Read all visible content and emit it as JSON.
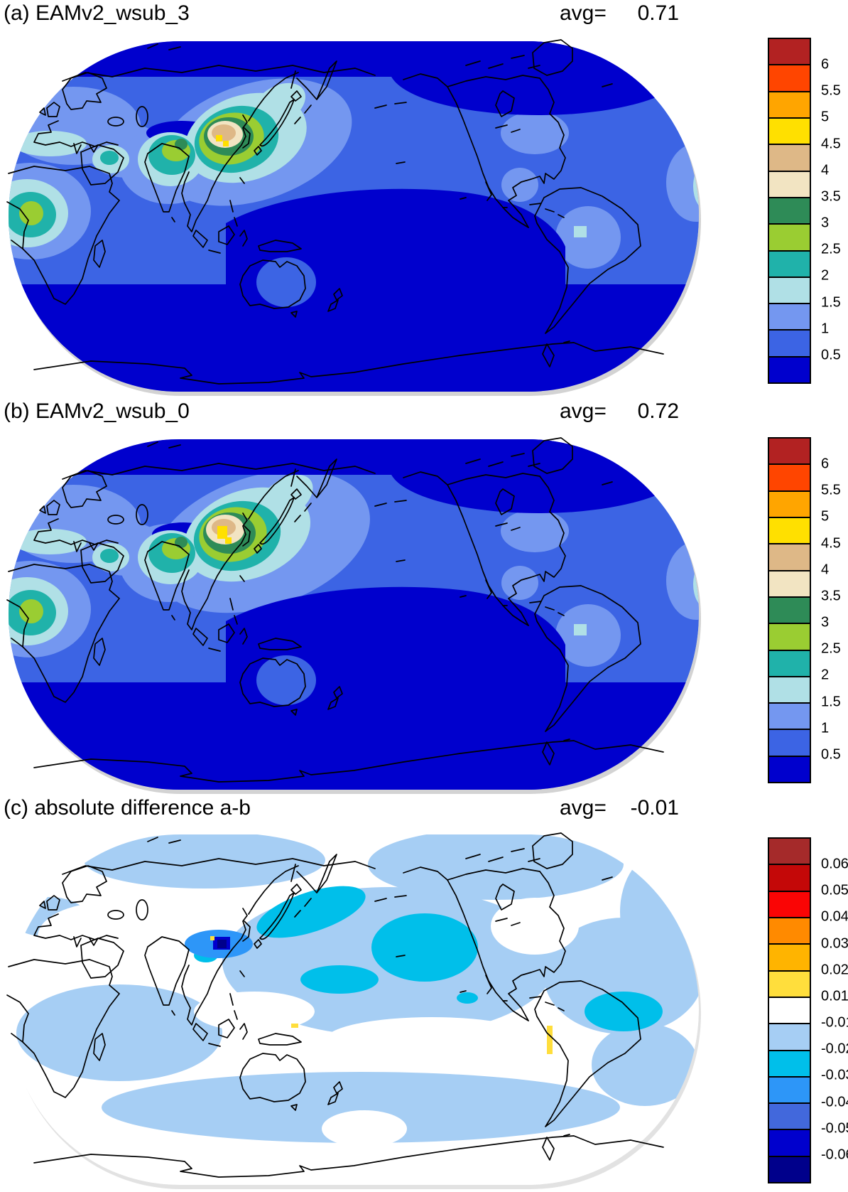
{
  "page": {
    "background": "#FFFFFF"
  },
  "panels": [
    {
      "label": "(a) EAMv2_wsub_3",
      "avg_label": "avg=",
      "avg_value": "0.71",
      "colorbar": {
        "tick_labels": [
          "6",
          "5.5",
          "5",
          "4.5",
          "4",
          "3.5",
          "3",
          "2.5",
          "2",
          "1.5",
          "1",
          "0.5"
        ],
        "colors": [
          "#B22222",
          "#FF4500",
          "#FFA500",
          "#FFE000",
          "#DEB887",
          "#F2E4C2",
          "#2E8B57",
          "#9ACD32",
          "#20B2AA",
          "#B0E0E6",
          "#7497F0",
          "#3C64E4",
          "#0000CD"
        ]
      }
    },
    {
      "label": "(b) EAMv2_wsub_0",
      "avg_label": "avg=",
      "avg_value": "0.72",
      "colorbar": {
        "tick_labels": [
          "6",
          "5.5",
          "5",
          "4.5",
          "4",
          "3.5",
          "3",
          "2.5",
          "2",
          "1.5",
          "1",
          "0.5"
        ],
        "colors": [
          "#B22222",
          "#FF4500",
          "#FFA500",
          "#FFE000",
          "#DEB887",
          "#F2E4C2",
          "#2E8B57",
          "#9ACD32",
          "#20B2AA",
          "#B0E0E6",
          "#7497F0",
          "#3C64E4",
          "#0000CD"
        ]
      }
    },
    {
      "label": "(c) absolute difference a-b",
      "avg_label": "avg=",
      "avg_value": "-0.01",
      "colorbar": {
        "tick_labels": [
          "0.06",
          "0.05",
          "0.04",
          "0.03",
          "0.02",
          "0.01",
          "-0.01",
          "-0.02",
          "-0.03",
          "-0.04",
          "-0.05",
          "-0.06"
        ],
        "colors": [
          "#A52A2A",
          "#C40808",
          "#FA0505",
          "#FF8A00",
          "#FFB400",
          "#FFDE3C",
          "#FFFFFF",
          "#A6CEF4",
          "#00BFEA",
          "#2D96F8",
          "#4268DC",
          "#0000CD",
          "#00008B"
        ]
      }
    }
  ],
  "chart_data": [
    {
      "type": "heatmap",
      "title": "(a) EAMv2_wsub_3",
      "avg": 0.71,
      "projection": "global Robinson world map, Pacific-centered",
      "levels": [
        0.5,
        1,
        1.5,
        2,
        2.5,
        3,
        3.5,
        4,
        4.5,
        5,
        5.5,
        6
      ],
      "palette_low_to_high": [
        "#0000CD",
        "#3C64E4",
        "#7497F0",
        "#B0E0E6",
        "#20B2AA",
        "#9ACD32",
        "#2E8B57",
        "#F2E4C2",
        "#DEB887",
        "#FFE000",
        "#FFA500",
        "#FF4500",
        "#B22222"
      ],
      "legend_position": "right",
      "notable_features": [
        "maximum 4.5-5 (yellow/tan) over East China / Korea / Yellow Sea",
        "secondary maxima 2.5-3 over northern India and West Africa",
        "1-2 band over Europe, Middle East and around the East Asia hotspot",
        "values below 0.5 over Arctic, tropical central-east Pacific, Tibet patch and Southern Ocean",
        "local 1-1.5 patch over central South America and southeast United States"
      ]
    },
    {
      "type": "heatmap",
      "title": "(b) EAMv2_wsub_0",
      "avg": 0.72,
      "projection": "global Robinson world map, Pacific-centered",
      "levels": [
        0.5,
        1,
        1.5,
        2,
        2.5,
        3,
        3.5,
        4,
        4.5,
        5,
        5.5,
        6
      ],
      "palette_low_to_high": [
        "#0000CD",
        "#3C64E4",
        "#7497F0",
        "#B0E0E6",
        "#20B2AA",
        "#9ACD32",
        "#2E8B57",
        "#F2E4C2",
        "#DEB887",
        "#FFE000",
        "#FFA500",
        "#FF4500",
        "#B22222"
      ],
      "legend_position": "right",
      "notable_features": [
        "same pattern as panel (a) with slightly larger 4.5-5 yellow core over Korea / Yellow Sea",
        "halo of 1-2 values extends farther east past Japan into the North Pacific"
      ]
    },
    {
      "type": "heatmap",
      "title": "(c) absolute difference a-b",
      "avg": -0.01,
      "projection": "global Robinson world map, Pacific-centered",
      "levels": [
        -0.06,
        -0.05,
        -0.04,
        -0.03,
        -0.02,
        -0.01,
        0.01,
        0.02,
        0.03,
        0.04,
        0.05,
        0.06
      ],
      "palette_low_to_high": [
        "#00008B",
        "#0000CD",
        "#4268DC",
        "#2D96F8",
        "#00BFEA",
        "#A6CEF4",
        "#FFFFFF",
        "#FFDE3C",
        "#FFB400",
        "#FF8A00",
        "#FA0505",
        "#C40808",
        "#A52A2A"
      ],
      "legend_position": "right",
      "notable_features": [
        "mostly white (|difference| < 0.01) over land and tropics",
        "-0.01 to -0.02 (light blue) over large parts of the oceans",
        "-0.02 to -0.04 (cyan/blue) patches in the North Pacific east of Japan",
        "localized minimum below -0.05 (dark blue) near Korea / Yellow Sea",
        "small positive 0.01-0.02 (yellow) strip along the Peru coast"
      ]
    }
  ]
}
